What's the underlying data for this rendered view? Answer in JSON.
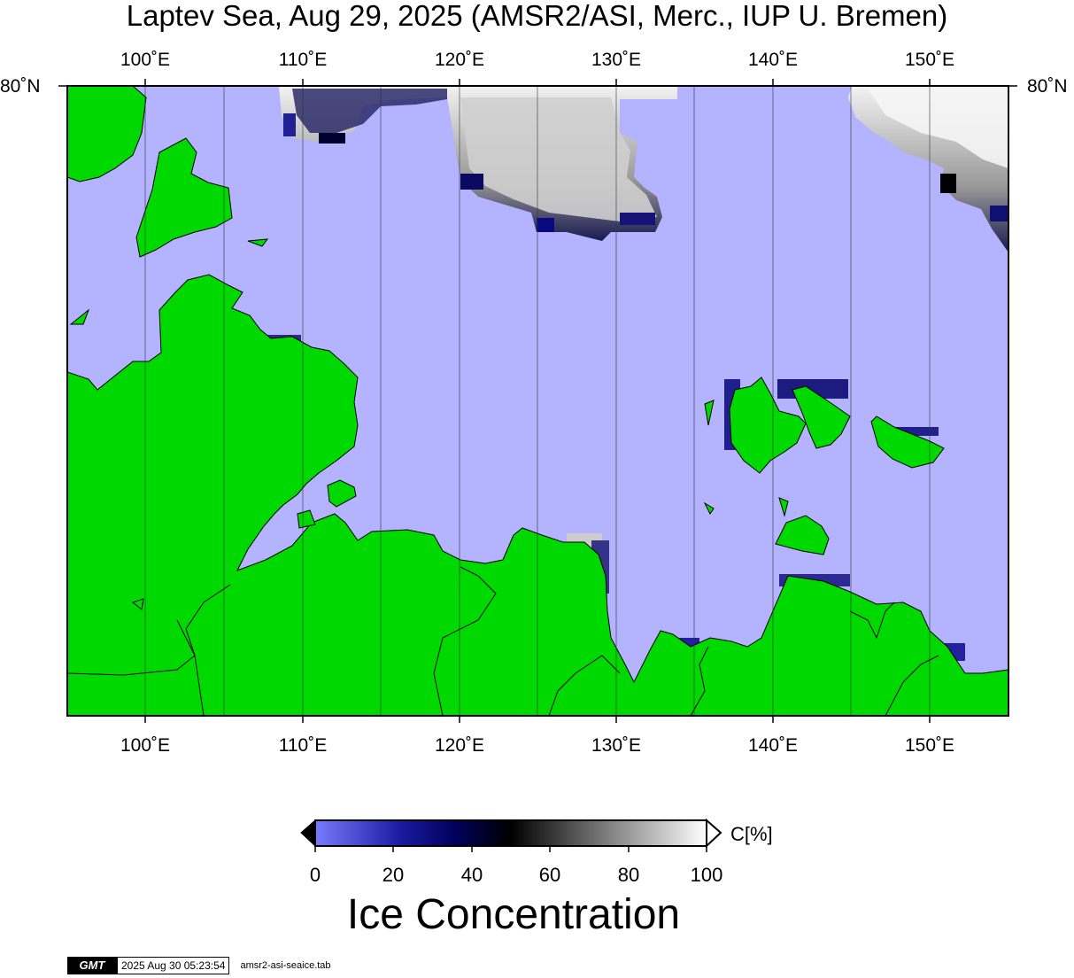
{
  "title": "Laptev Sea, Aug 29, 2025 (AMSR2/ASI, Merc., IUP U. Bremen)",
  "map": {
    "lon_labels": [
      "100˚E",
      "110˚E",
      "120˚E",
      "130˚E",
      "140˚E",
      "150˚E"
    ],
    "lat_label": "80˚N",
    "colors": {
      "water": "#b3b3ff",
      "land": "#00d900",
      "frame": "#000000",
      "gridline": "#555555"
    }
  },
  "colorbar": {
    "ticks": [
      "0",
      "20",
      "40",
      "60",
      "80",
      "100"
    ],
    "unit": "C[%]",
    "title": "Ice Concentration",
    "colors": {
      "low": "#7070ff",
      "mid_low": "#00007a",
      "mid": "#000000",
      "high": "#ffffff"
    }
  },
  "footer": {
    "logo": "GMT",
    "timestamp": "2025 Aug 30 05:23:54",
    "source": "amsr2-asi-seaice.tab"
  }
}
